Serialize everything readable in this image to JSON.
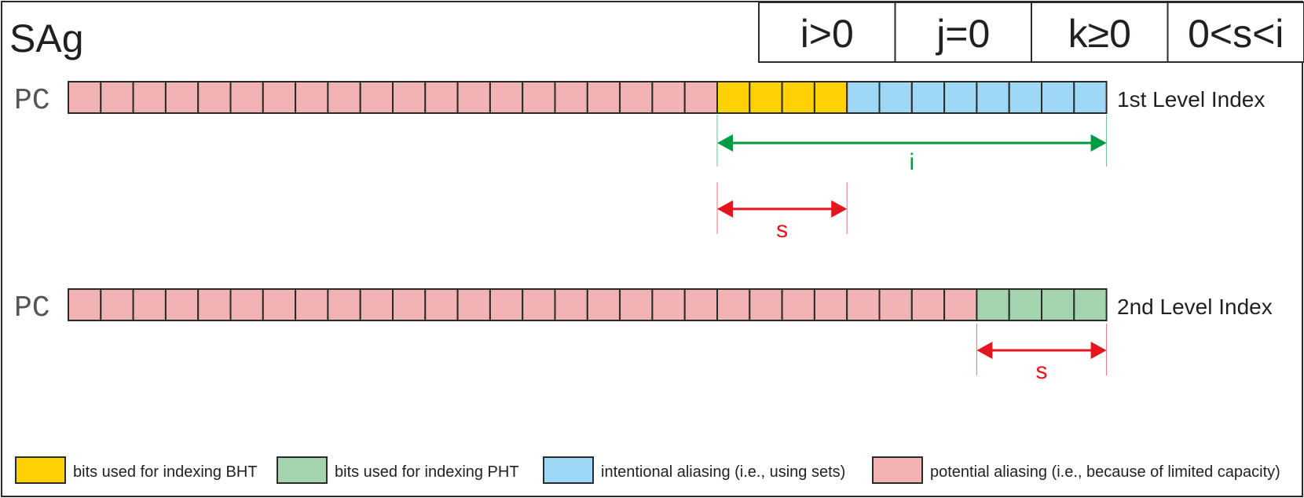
{
  "title": "SAg",
  "params": [
    "i>0",
    "j=0",
    "k≥0",
    "0<s<i"
  ],
  "rows": [
    {
      "label": "PC",
      "index_label": "1st Level Index",
      "bits": [
        "potential",
        "potential",
        "potential",
        "potential",
        "potential",
        "potential",
        "potential",
        "potential",
        "potential",
        "potential",
        "potential",
        "potential",
        "potential",
        "potential",
        "potential",
        "potential",
        "potential",
        "potential",
        "otential_end_placeholder"
      ]
    }
  ],
  "row1": {
    "label": "PC",
    "index_label": "1st Level Index",
    "bits": [
      "potential",
      "potential",
      "potential",
      "potential",
      "potential",
      "potential",
      "potential",
      "potential",
      "potential",
      "potential",
      "potential",
      "potential",
      "potential",
      "potential",
      "potential",
      "potential",
      "potential",
      "potential",
      "potential",
      "potential",
      "bht",
      "bht",
      "bht",
      "bht",
      "intentional",
      "intentional",
      "intentional",
      "intentional",
      "intentional",
      "intentional",
      "intentional",
      "intentional"
    ]
  },
  "row2": {
    "label": "PC",
    "index_label": "2nd Level Index",
    "bits": [
      "potential",
      "potential",
      "potential",
      "potential",
      "potential",
      "potential",
      "potential",
      "potential",
      "potential",
      "potential",
      "potential",
      "potential",
      "potential",
      "potential",
      "potential",
      "potential",
      "potential",
      "potential",
      "potential",
      "potential",
      "potential",
      "potential",
      "potential",
      "potential",
      "potential",
      "potential",
      "potential",
      "potential",
      "pht",
      "pht",
      "pht",
      "pht"
    ]
  },
  "spans": [
    {
      "label": "i",
      "row": 1,
      "from_bit": 20,
      "to_bit": 32,
      "color": "#009944"
    },
    {
      "label": "s",
      "row": 1,
      "from_bit": 20,
      "to_bit": 24,
      "color": "#e5141e"
    },
    {
      "label": "s",
      "row": 2,
      "from_bit": 28,
      "to_bit": 32,
      "color": "#e5141e"
    }
  ],
  "legend": [
    {
      "key": "bht",
      "label": "bits used for indexing BHT"
    },
    {
      "key": "pht",
      "label": "bits used for indexing PHT"
    },
    {
      "key": "intentional",
      "label": "intentional aliasing (i.e., using sets)"
    },
    {
      "key": "potential",
      "label": "potential aliasing (i.e., because of limited capacity)"
    }
  ],
  "colors": {
    "bht": "#ffd200",
    "pht": "#a3d4ad",
    "intentional": "#9fd8f6",
    "potential": "#f2b3b5",
    "stroke": "#2b2b2b",
    "text": "#231f20",
    "pc_text": "#555555"
  }
}
